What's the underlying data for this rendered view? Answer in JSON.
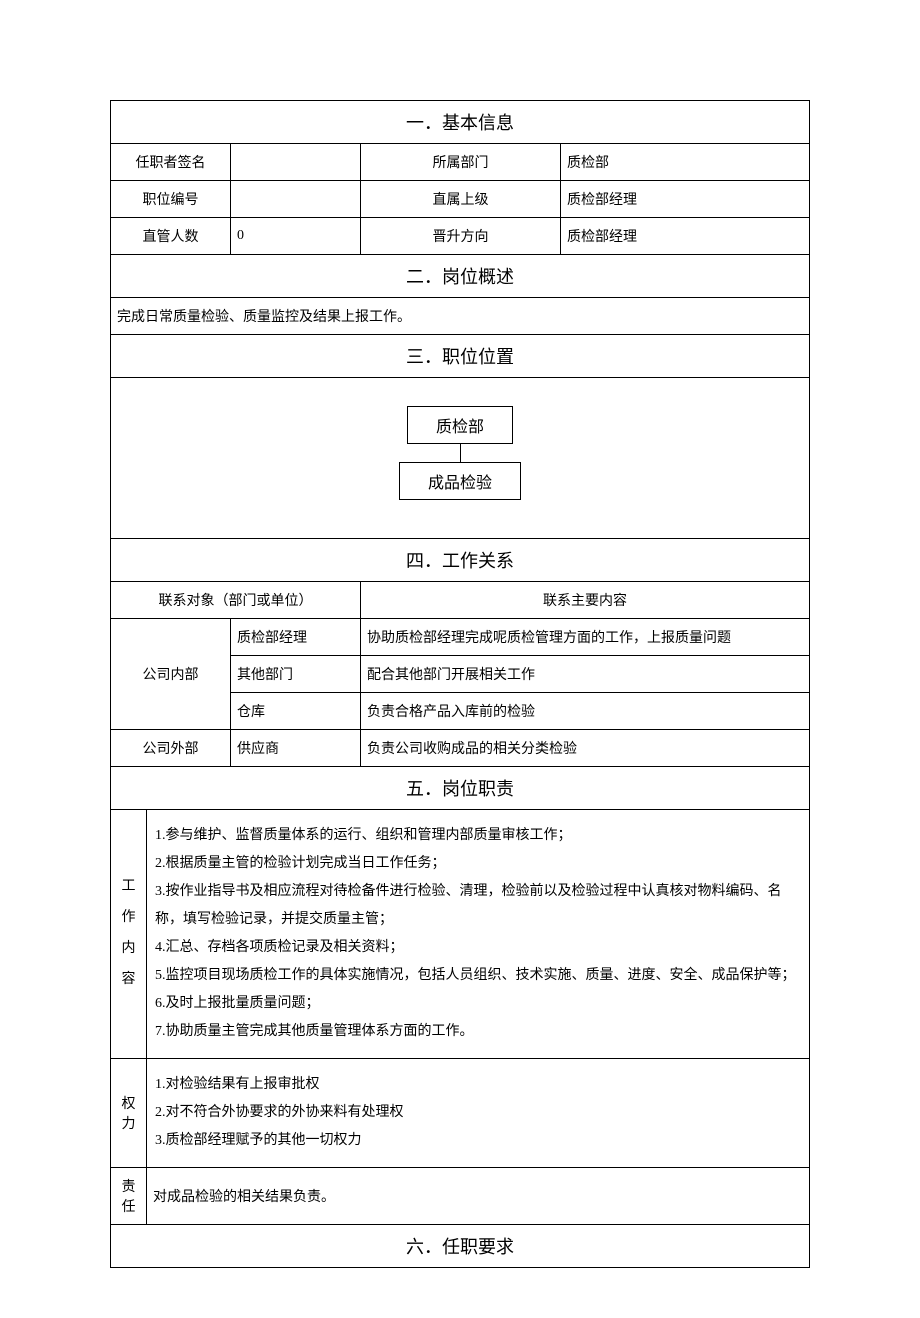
{
  "sections": {
    "s1": "一．基本信息",
    "s2": "二．岗位概述",
    "s3": "三．职位位置",
    "s4": "四．工作关系",
    "s5": "五．岗位职责",
    "s6": "六．任职要求"
  },
  "basic_info": {
    "signer_label": "任职者签名",
    "signer_value": "",
    "dept_label": "所属部门",
    "dept_value": "质检部",
    "position_no_label": "职位编号",
    "position_no_value": "",
    "supervisor_label": "直属上级",
    "supervisor_value": "质检部经理",
    "headcount_label": "直管人数",
    "headcount_value": "0",
    "promotion_label": "晋升方向",
    "promotion_value": "质检部经理"
  },
  "overview": "完成日常质量检验、质量监控及结果上报工作。",
  "org": {
    "top": "质检部",
    "bottom": "成品检验"
  },
  "relations": {
    "col1_header": "联系对象（部门或单位）",
    "col2_header": "联系主要内容",
    "internal_label": "公司内部",
    "external_label": "公司外部",
    "rows": {
      "r1_obj": "质检部经理",
      "r1_content": "协助质检部经理完成呢质检管理方面的工作，上报质量问题",
      "r2_obj": "其他部门",
      "r2_content": "配合其他部门开展相关工作",
      "r3_obj": "仓库",
      "r3_content": "负责合格产品入库前的检验",
      "r4_obj": "供应商",
      "r4_content": "负责公司收购成品的相关分类检验"
    }
  },
  "duties": {
    "work_label": "工作内容",
    "power_label": "权力",
    "resp_label": "责任",
    "work_items": {
      "w1": "1.参与维护、监督质量体系的运行、组织和管理内部质量审核工作；",
      "w2": "2.根据质量主管的检验计划完成当日工作任务；",
      "w3": "3.按作业指导书及相应流程对待检备件进行检验、清理，检验前以及检验过程中认真核对物料编码、名称，填写检验记录，并提交质量主管；",
      "w4": "4.汇总、存档各项质检记录及相关资料；",
      "w5": "5.监控项目现场质检工作的具体实施情况，包括人员组织、技术实施、质量、进度、安全、成品保护等；",
      "w6": "6.及时上报批量质量问题；",
      "w7": "7.协助质量主管完成其他质量管理体系方面的工作。"
    },
    "power_items": {
      "p1": "1.对检验结果有上报审批权",
      "p2": "2.对不符合外协要求的外协来料有处理权",
      "p3": "3.质检部经理赋予的其他一切权力"
    },
    "resp_text": "对成品检验的相关结果负责。"
  },
  "style": {
    "border_color": "#000000",
    "background": "#ffffff",
    "text_color": "#000000",
    "body_fontsize": 14,
    "header_fontsize": 18,
    "org_fontsize": 16,
    "line_height": 2.0
  }
}
